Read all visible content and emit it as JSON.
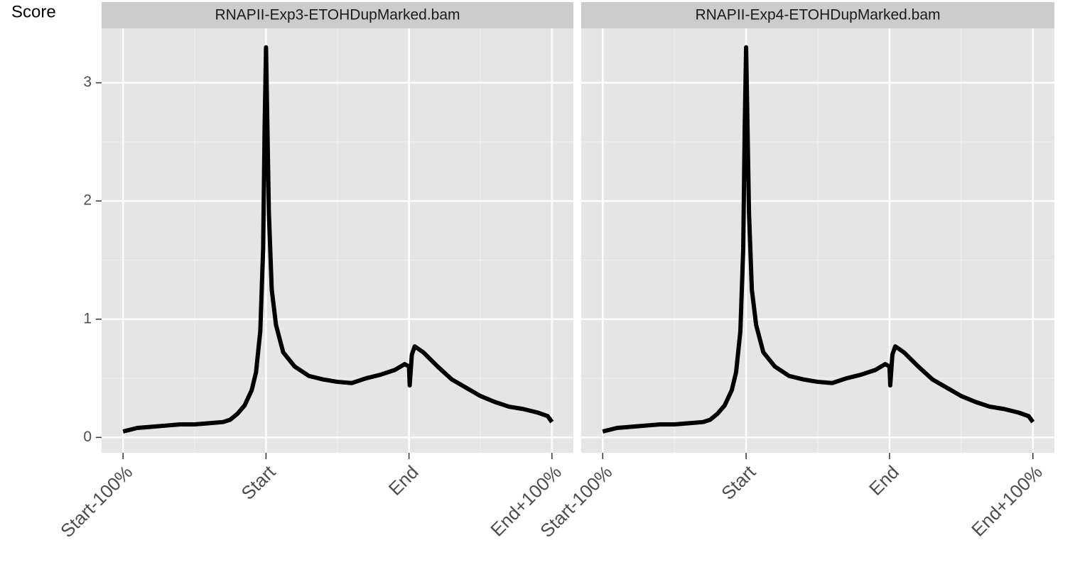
{
  "chart_data": [
    {
      "type": "line",
      "title": "RNAPII-Exp3-ETOHDupMarked.bam",
      "ylabel": "Score",
      "x": [
        0,
        0.1,
        0.2,
        0.3,
        0.4,
        0.5,
        0.6,
        0.7,
        0.75,
        0.8,
        0.85,
        0.9,
        0.93,
        0.96,
        0.98,
        0.99,
        1,
        1.01,
        1.02,
        1.04,
        1.07,
        1.12,
        1.2,
        1.3,
        1.4,
        1.5,
        1.6,
        1.7,
        1.8,
        1.9,
        1.97,
        2,
        2.005,
        2.02,
        2.04,
        2.1,
        2.2,
        2.3,
        2.4,
        2.5,
        2.6,
        2.7,
        2.8,
        2.9,
        2.97,
        3
      ],
      "series": [
        {
          "color": "#000000",
          "values": [
            0.05,
            0.08,
            0.09,
            0.1,
            0.11,
            0.11,
            0.12,
            0.13,
            0.15,
            0.2,
            0.27,
            0.4,
            0.55,
            0.9,
            1.6,
            2.6,
            3.3,
            2.6,
            1.9,
            1.25,
            0.95,
            0.72,
            0.6,
            0.52,
            0.49,
            0.47,
            0.46,
            0.5,
            0.53,
            0.57,
            0.62,
            0.6,
            0.44,
            0.7,
            0.77,
            0.72,
            0.6,
            0.49,
            0.42,
            0.35,
            0.3,
            0.26,
            0.24,
            0.21,
            0.18,
            0.13
          ]
        }
      ],
      "xlim": [
        -0.15,
        3.15
      ],
      "xticks": [
        {
          "value": 0,
          "label": "Start-100%"
        },
        {
          "value": 1,
          "label": "Start"
        },
        {
          "value": 2,
          "label": "End"
        },
        {
          "value": 3,
          "label": "End+100%"
        }
      ],
      "ylim": [
        -0.13,
        3.46
      ],
      "yticks": [
        0,
        1,
        2,
        3
      ],
      "grid": true
    },
    {
      "type": "line",
      "title": "RNAPII-Exp4-ETOHDupMarked.bam",
      "x": [
        0,
        0.1,
        0.2,
        0.3,
        0.4,
        0.5,
        0.6,
        0.7,
        0.75,
        0.8,
        0.85,
        0.9,
        0.93,
        0.96,
        0.98,
        0.99,
        1,
        1.01,
        1.02,
        1.04,
        1.07,
        1.12,
        1.2,
        1.3,
        1.4,
        1.5,
        1.6,
        1.7,
        1.8,
        1.9,
        1.97,
        2,
        2.005,
        2.02,
        2.04,
        2.1,
        2.2,
        2.3,
        2.4,
        2.5,
        2.6,
        2.7,
        2.8,
        2.9,
        2.97,
        3
      ],
      "series": [
        {
          "color": "#000000",
          "values": [
            0.05,
            0.08,
            0.09,
            0.1,
            0.11,
            0.11,
            0.12,
            0.13,
            0.15,
            0.2,
            0.27,
            0.4,
            0.55,
            0.9,
            1.6,
            2.6,
            3.3,
            2.6,
            1.9,
            1.25,
            0.95,
            0.72,
            0.6,
            0.52,
            0.49,
            0.47,
            0.46,
            0.5,
            0.53,
            0.57,
            0.62,
            0.6,
            0.44,
            0.7,
            0.77,
            0.72,
            0.6,
            0.49,
            0.42,
            0.35,
            0.3,
            0.26,
            0.24,
            0.21,
            0.18,
            0.13
          ]
        }
      ],
      "xlim": [
        -0.15,
        3.15
      ],
      "xticks": [
        {
          "value": 0,
          "label": "Start-100%"
        },
        {
          "value": 1,
          "label": "Start"
        },
        {
          "value": 2,
          "label": "End"
        },
        {
          "value": 3,
          "label": "End+100%"
        }
      ],
      "ylim": [
        -0.13,
        3.46
      ],
      "yticks": [
        0,
        1,
        2,
        3
      ],
      "grid": true
    }
  ]
}
